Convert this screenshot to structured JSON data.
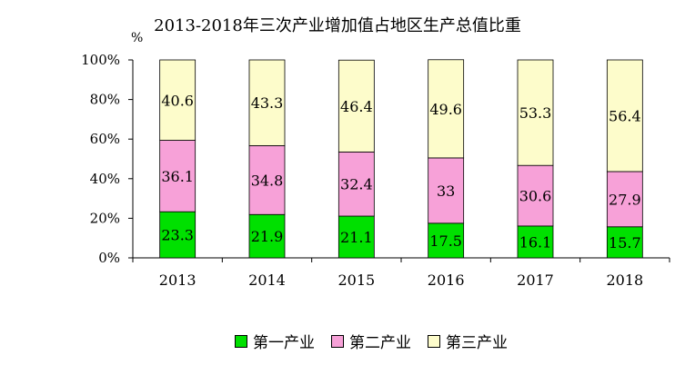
{
  "chart_data": {
    "type": "bar",
    "stacked": true,
    "title": "2013-2018年三次产业增加值占地区生产总值比重",
    "ylabel": "%",
    "ylim": [
      0,
      100
    ],
    "yticks": [
      "0%",
      "20%",
      "40%",
      "60%",
      "80%",
      "100%"
    ],
    "categories": [
      "2013",
      "2014",
      "2015",
      "2016",
      "2017",
      "2018"
    ],
    "series": [
      {
        "name": "第一产业",
        "color": "#00e000",
        "values": [
          23.3,
          21.9,
          21.1,
          17.5,
          16.1,
          15.7
        ],
        "labels": [
          "23.3",
          "21.9",
          "21.1",
          "17.5",
          "16.1",
          "15.7"
        ]
      },
      {
        "name": "第二产业",
        "color": "#f7a1d8",
        "values": [
          36.1,
          34.8,
          32.4,
          33,
          30.6,
          27.9
        ],
        "labels": [
          "36.1",
          "34.8",
          "32.4",
          "33",
          "30.6",
          "27.9"
        ]
      },
      {
        "name": "第三产业",
        "color": "#fdfccb",
        "values": [
          40.6,
          43.3,
          46.4,
          49.6,
          53.3,
          56.4
        ],
        "labels": [
          "40.6",
          "43.3",
          "46.4",
          "49.6",
          "53.3",
          "56.4"
        ]
      }
    ],
    "legend_position": "bottom",
    "grid": false
  }
}
